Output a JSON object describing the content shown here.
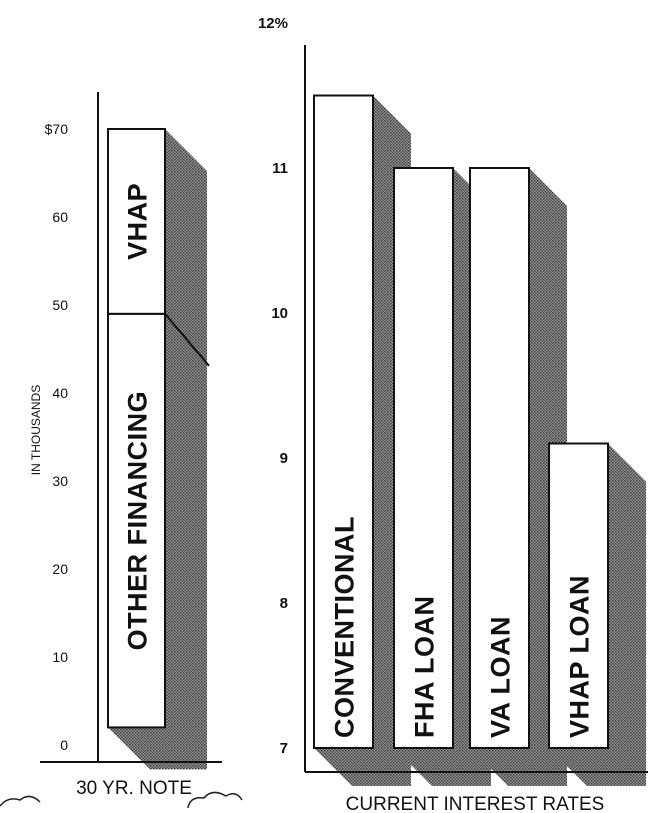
{
  "chart_data": [
    {
      "type": "bar",
      "stacked": true,
      "x_label": "30 YR. NOTE",
      "ylabel": "IN THOUSANDS",
      "ylim": [
        0,
        70
      ],
      "y_ticks": [
        "0",
        "10",
        "20",
        "30",
        "40",
        "50",
        "60",
        "$70"
      ],
      "segments": [
        {
          "name": "OTHER FINANCING",
          "from": 2,
          "to": 49
        },
        {
          "name": "VHAP",
          "from": 49,
          "to": 70
        }
      ]
    },
    {
      "type": "bar",
      "xlabel": "CURRENT INTEREST RATES",
      "ylim": [
        7,
        12
      ],
      "y_ticks": [
        "7",
        "8",
        "9",
        "10",
        "11",
        "12%"
      ],
      "categories": [
        "CONVENTIONAL",
        "FHA  LOAN",
        "VA  LOAN",
        "VHAP LOAN"
      ],
      "values": [
        11.5,
        11.0,
        11.0,
        9.1
      ]
    }
  ]
}
